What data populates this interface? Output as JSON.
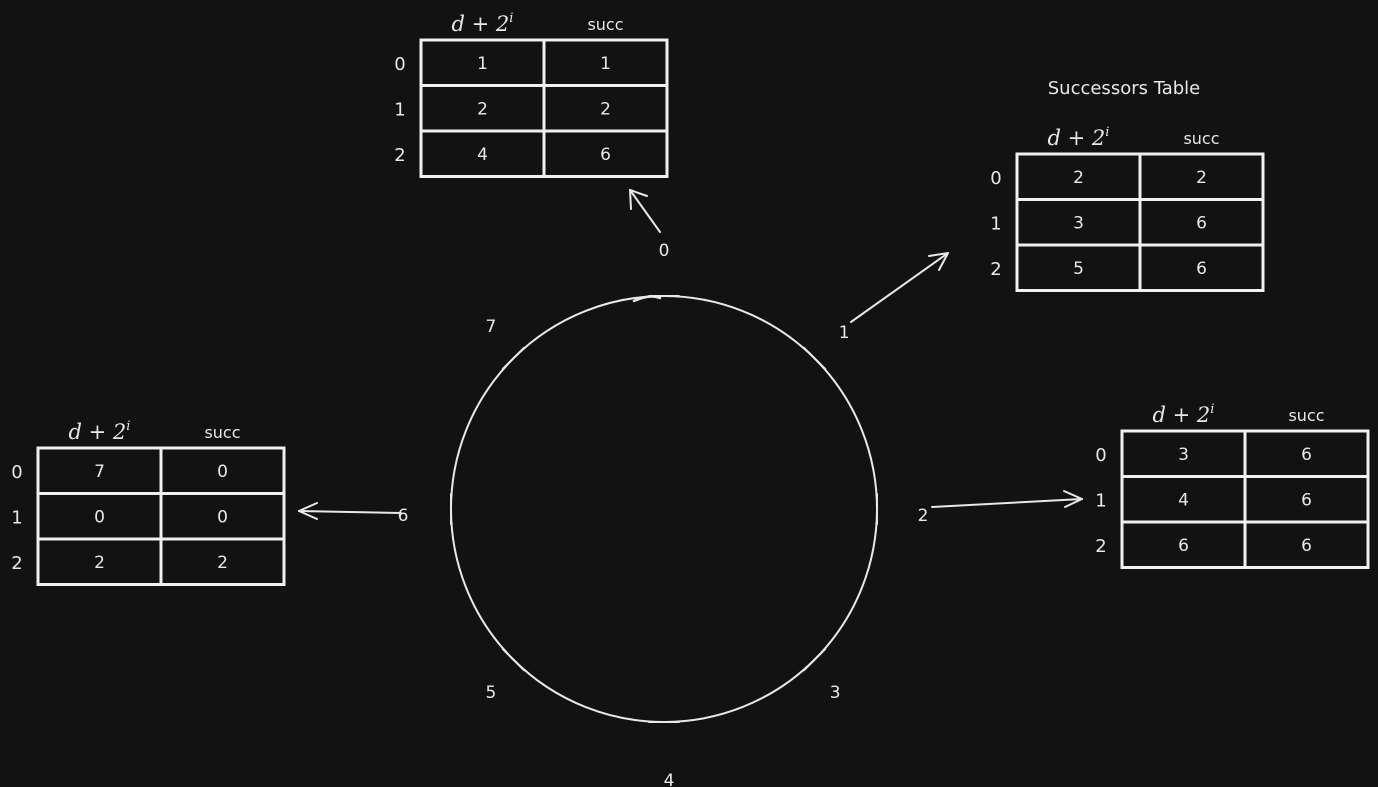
{
  "diagram": {
    "title": "Successors Table",
    "nodes": [
      "0",
      "1",
      "2",
      "3",
      "4",
      "5",
      "6",
      "7"
    ],
    "columns": {
      "header_base": "d + 2",
      "header_exp": "i",
      "succ": "succ"
    },
    "tables": [
      {
        "node": "0",
        "rows": [
          {
            "i": "0",
            "d": "1",
            "succ": "1"
          },
          {
            "i": "1",
            "d": "2",
            "succ": "2"
          },
          {
            "i": "2",
            "d": "4",
            "succ": "6"
          }
        ]
      },
      {
        "node": "1",
        "rows": [
          {
            "i": "0",
            "d": "2",
            "succ": "2"
          },
          {
            "i": "1",
            "d": "3",
            "succ": "6"
          },
          {
            "i": "2",
            "d": "5",
            "succ": "6"
          }
        ]
      },
      {
        "node": "2",
        "rows": [
          {
            "i": "0",
            "d": "3",
            "succ": "6"
          },
          {
            "i": "1",
            "d": "4",
            "succ": "6"
          },
          {
            "i": "2",
            "d": "6",
            "succ": "6"
          }
        ]
      },
      {
        "node": "6",
        "rows": [
          {
            "i": "0",
            "d": "7",
            "succ": "0"
          },
          {
            "i": "1",
            "d": "0",
            "succ": "0"
          },
          {
            "i": "2",
            "d": "2",
            "succ": "2"
          }
        ]
      }
    ]
  }
}
